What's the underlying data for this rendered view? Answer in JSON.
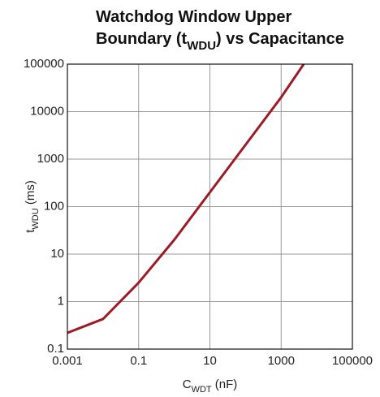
{
  "chart_data": {
    "type": "line",
    "title": [
      [
        {
          "text": "Watchdog Window Upper"
        }
      ],
      [
        {
          "text": "Boundary (t"
        },
        {
          "text": "WDU",
          "sub": true
        },
        {
          "text": ") vs Capacitance"
        }
      ]
    ],
    "x_label": [
      {
        "text": "C"
      },
      {
        "text": "WDT",
        "sub": true
      },
      {
        "text": " (nF)"
      }
    ],
    "y_label": [
      {
        "text": "t"
      },
      {
        "text": "WDU",
        "sub": true
      },
      {
        "text": " (ms)"
      }
    ],
    "x": [
      0.001,
      0.01,
      0.1,
      1,
      10,
      100,
      1000,
      4300
    ],
    "series": [
      {
        "color": "#9b1c24",
        "values": [
          0.22,
          0.43,
          2.5,
          20,
          200,
          2000,
          20000,
          100000
        ]
      }
    ],
    "xlim": [
      0.001,
      100000
    ],
    "ylim": [
      0.1,
      100000
    ],
    "xticks": [
      0.001,
      0.1,
      10,
      1000,
      100000
    ],
    "yticks": [
      0.1,
      1,
      10,
      100,
      1000,
      10000,
      100000
    ],
    "xlog": true,
    "ylog": true,
    "grid": true
  }
}
